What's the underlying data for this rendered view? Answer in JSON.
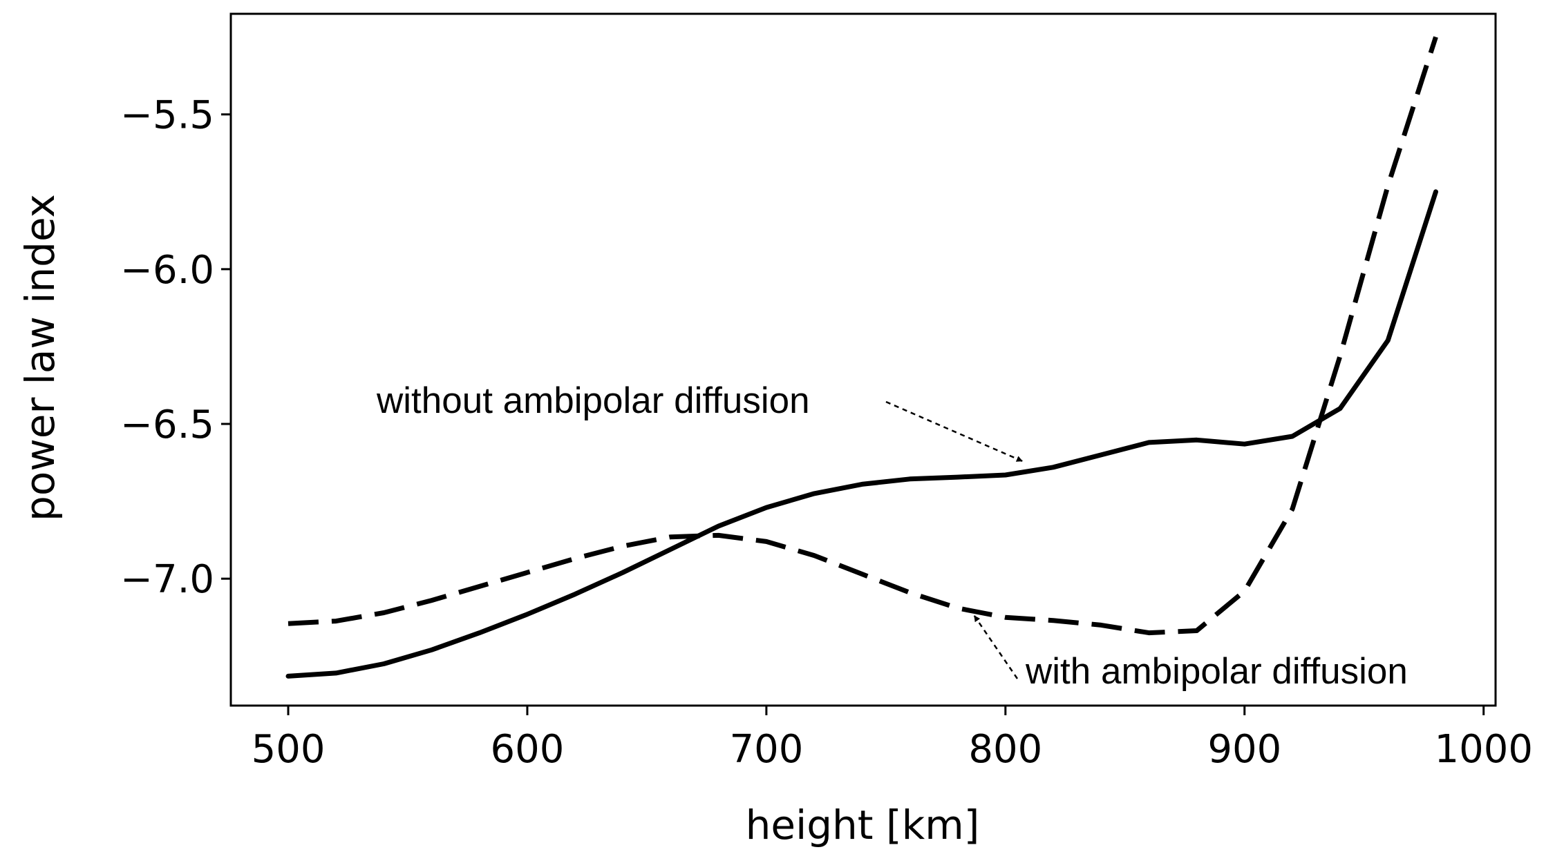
{
  "chart_data": {
    "type": "line",
    "title": "",
    "xlabel": "height [km]",
    "ylabel": "power law index",
    "xlim": [
      476,
      1005
    ],
    "ylim": [
      -7.41,
      -5.175
    ],
    "xticks": [
      500,
      600,
      700,
      800,
      900,
      1000
    ],
    "xtick_labels": [
      "500",
      "600",
      "700",
      "800",
      "900",
      "1000"
    ],
    "yticks": [
      -5.5,
      -6.0,
      -6.5,
      -7.0
    ],
    "ytick_labels": [
      "−5.5",
      "−6.0",
      "−6.5",
      "−7.0"
    ],
    "grid": false,
    "legend": "none",
    "series": [
      {
        "style": "solid",
        "color": "#000000",
        "x": [
          500,
          520,
          540,
          560,
          580,
          600,
          620,
          640,
          660,
          680,
          700,
          720,
          740,
          760,
          780,
          800,
          820,
          840,
          860,
          880,
          900,
          920,
          940,
          960,
          980
        ],
        "y": [
          -7.315,
          -7.305,
          -7.275,
          -7.23,
          -7.175,
          -7.115,
          -7.05,
          -6.98,
          -6.905,
          -6.83,
          -6.77,
          -6.725,
          -6.695,
          -6.678,
          -6.672,
          -6.665,
          -6.64,
          -6.6,
          -6.56,
          -6.552,
          -6.565,
          -6.54,
          -6.45,
          -6.23,
          -5.75
        ]
      },
      {
        "style": "dashed",
        "color": "#000000",
        "x": [
          500,
          520,
          540,
          560,
          580,
          600,
          620,
          640,
          660,
          680,
          700,
          720,
          740,
          760,
          780,
          800,
          820,
          840,
          860,
          880,
          900,
          920,
          940,
          960,
          980
        ],
        "y": [
          -7.145,
          -7.137,
          -7.11,
          -7.07,
          -7.025,
          -6.98,
          -6.935,
          -6.895,
          -6.865,
          -6.86,
          -6.88,
          -6.925,
          -6.985,
          -7.045,
          -7.095,
          -7.125,
          -7.135,
          -7.15,
          -7.175,
          -7.168,
          -7.04,
          -6.775,
          -6.28,
          -5.73,
          -5.25
        ]
      }
    ],
    "annotations": [
      {
        "text": "without ambipolar diffusion",
        "target_x": 807,
        "target_y": -6.62
      },
      {
        "text": "with ambipolar diffusion",
        "target_x": 787,
        "target_y": -7.12
      }
    ]
  }
}
